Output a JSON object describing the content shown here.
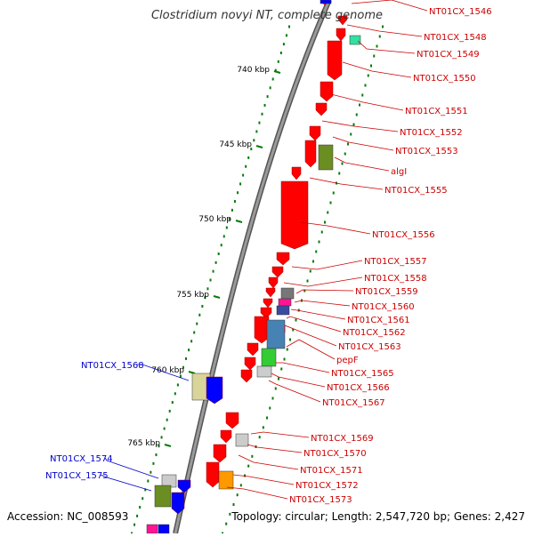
{
  "title": "Clostridium novyi NT, complete genome",
  "footer": {
    "accession": "Accession: NC_008593",
    "summary": "Topology: circular; Length: 2,547,720 bp; Genes: 2,427"
  },
  "ruler": {
    "unit": "kbp",
    "ticks": [
      {
        "value": 740,
        "label": "740 kbp"
      },
      {
        "value": 745,
        "label": "745 kbp"
      },
      {
        "value": 750,
        "label": "750 kbp"
      },
      {
        "value": 755,
        "label": "755 kbp"
      },
      {
        "value": 760,
        "label": "760 kbp"
      },
      {
        "value": 765,
        "label": "765 kbp"
      }
    ]
  },
  "colors": {
    "backbone": "#888888",
    "red_gene": "#ff0000",
    "red_label": "#cc0000",
    "blue_label": "#0000cc",
    "tick": "#0a7a0a"
  },
  "right_labels": [
    "NT01CX_1546",
    "NT01CX_1548",
    "NT01CX_1549",
    "NT01CX_1550",
    "NT01CX_1551",
    "NT01CX_1552",
    "NT01CX_1553",
    "algI",
    "NT01CX_1555",
    "NT01CX_1556",
    "NT01CX_1557",
    "NT01CX_1558",
    "NT01CX_1559",
    "NT01CX_1560",
    "NT01CX_1561",
    "NT01CX_1562",
    "NT01CX_1563",
    "pepF",
    "NT01CX_1565",
    "NT01CX_1566",
    "NT01CX_1567",
    "NT01CX_1569",
    "NT01CX_1570",
    "NT01CX_1571",
    "NT01CX_1572",
    "NT01CX_1573"
  ],
  "left_labels": [
    "NT01CX_1568",
    "NT01CX_1574",
    "NT01CX_1575"
  ],
  "gene_colors": [
    "red",
    "green",
    "olive",
    "blue",
    "khaki",
    "gray",
    "magenta",
    "steelblue",
    "orange",
    "lightgray",
    "mint"
  ]
}
